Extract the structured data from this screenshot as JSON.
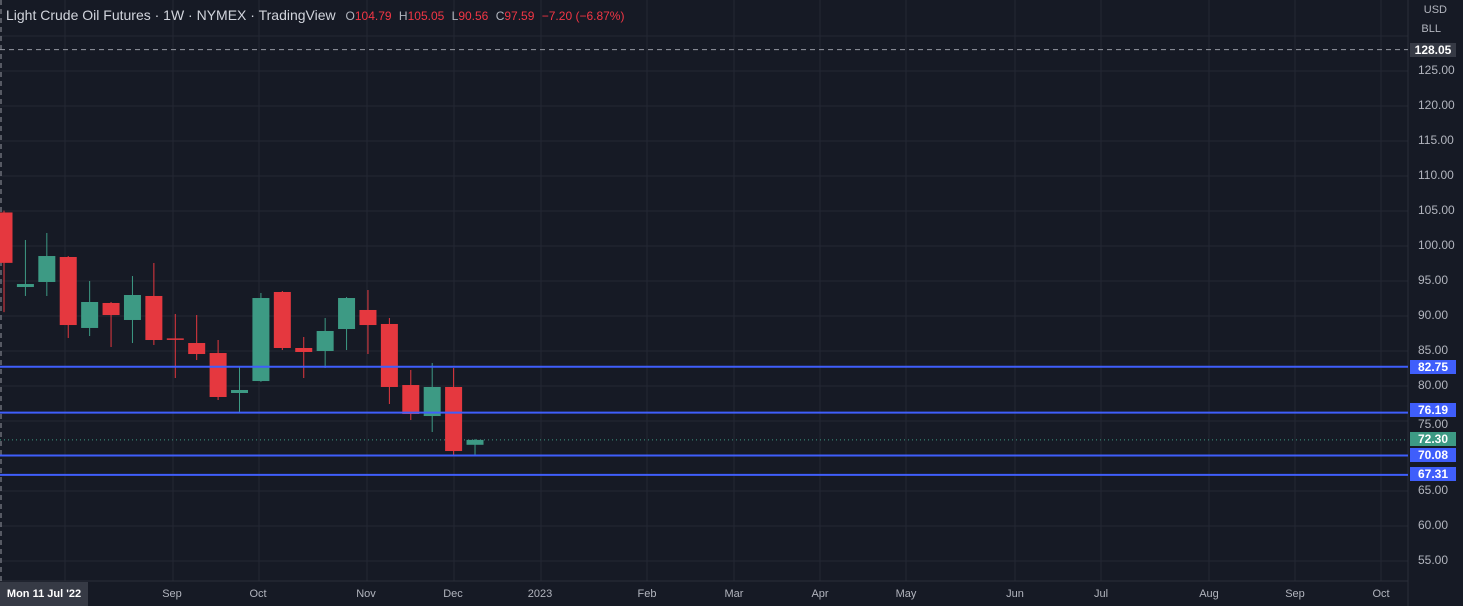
{
  "header": {
    "title": "Light Crude Oil Futures · 1W · NYMEX · TradingView",
    "ohlc": {
      "o_label": "O",
      "o": "104.79",
      "h_label": "H",
      "h": "105.05",
      "l_label": "L",
      "l": "90.56",
      "c_label": "C",
      "c": "97.59",
      "change": "−7.20 (−6.87%)"
    }
  },
  "price_axis": {
    "currency": "USD",
    "unit": "BLL",
    "ticks": [
      "125.00",
      "120.00",
      "115.00",
      "110.00",
      "105.00",
      "100.00",
      "95.00",
      "90.00",
      "85.00",
      "80.00",
      "75.00",
      "65.00",
      "60.00",
      "55.00"
    ],
    "tick_values": [
      125,
      120,
      115,
      110,
      105,
      100,
      95,
      90,
      85,
      80,
      75,
      65,
      60,
      55
    ],
    "crosshair_price": "128.05",
    "last_price": "72.30",
    "levels": [
      "82.75",
      "76.19",
      "70.08",
      "67.31"
    ]
  },
  "time_axis": {
    "crosshair_date": "Mon 11 Jul '22",
    "labels": [
      "Sep",
      "Oct",
      "Nov",
      "Dec",
      "2023",
      "Feb",
      "Mar",
      "Apr",
      "May",
      "Jun",
      "Jul",
      "Aug",
      "Sep",
      "Oct"
    ]
  },
  "colors": {
    "up": "#3d9a84",
    "down": "#e5383f",
    "level": "#3f5efb",
    "bg": "#161a25",
    "grid": "#242834"
  },
  "chart_data": {
    "type": "candlestick",
    "interval": "1W",
    "ohlc": [
      [
        104.79,
        105.05,
        90.56,
        97.59
      ],
      [
        94.14,
        100.86,
        92.86,
        94.57
      ],
      [
        94.86,
        101.86,
        92.86,
        98.57
      ],
      [
        98.43,
        98.57,
        86.86,
        88.71
      ],
      [
        88.29,
        95.0,
        87.14,
        92.0
      ],
      [
        91.86,
        92.0,
        85.57,
        90.14
      ],
      [
        89.43,
        95.71,
        86.14,
        93.0
      ],
      [
        92.86,
        97.57,
        85.86,
        86.57
      ],
      [
        86.8,
        90.29,
        81.14,
        86.6
      ],
      [
        86.14,
        90.14,
        83.71,
        84.57
      ],
      [
        84.71,
        86.57,
        78.0,
        78.43
      ],
      [
        79.0,
        82.86,
        76.14,
        79.43
      ],
      [
        80.71,
        93.29,
        80.6,
        92.57
      ],
      [
        93.43,
        93.57,
        85.14,
        85.43
      ],
      [
        85.43,
        87.0,
        81.14,
        84.86
      ],
      [
        85.0,
        89.71,
        82.57,
        87.86
      ],
      [
        88.14,
        92.71,
        85.14,
        92.57
      ],
      [
        90.86,
        93.71,
        84.57,
        88.71
      ],
      [
        88.86,
        89.71,
        77.43,
        79.86
      ],
      [
        80.14,
        82.29,
        75.14,
        76.0
      ],
      [
        75.71,
        83.29,
        73.43,
        79.86
      ],
      [
        79.86,
        82.57,
        70.14,
        70.71
      ],
      [
        71.6,
        72.43,
        70.14,
        72.3
      ]
    ],
    "horizontal_levels": [
      82.75,
      76.19,
      70.08,
      67.31
    ],
    "ylim": [
      50.3,
      133.3
    ]
  }
}
